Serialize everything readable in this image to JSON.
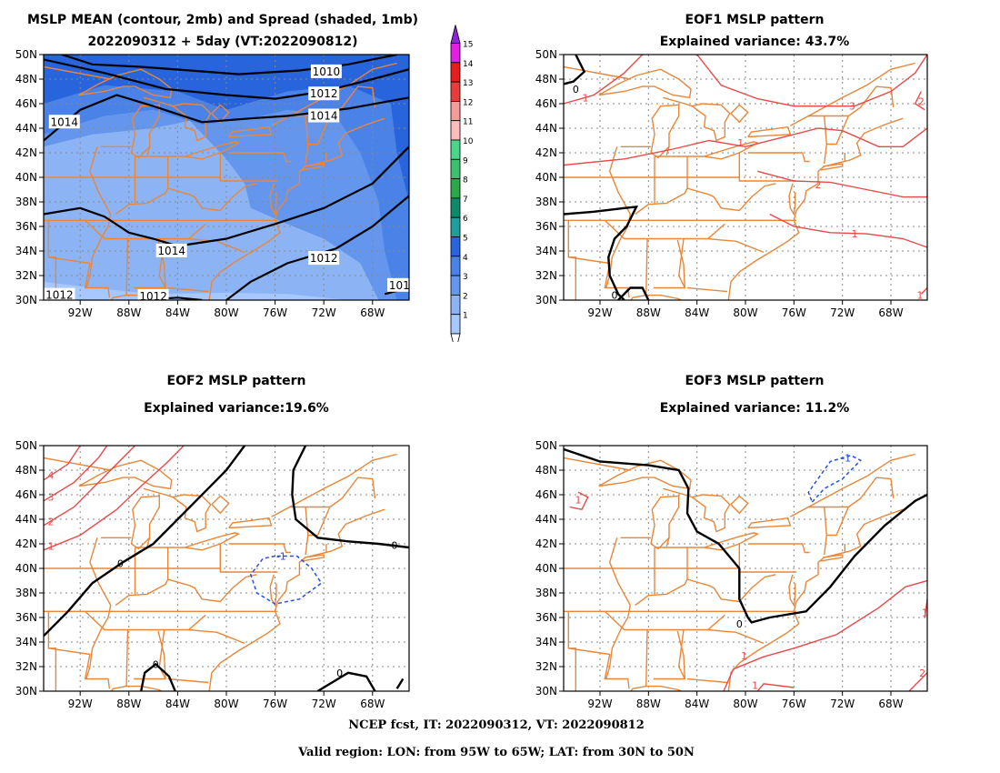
{
  "panels": [
    {
      "id": "mean-spread",
      "title_lines": [
        "MSLP MEAN (contour, 2mb) and Spread (shaded, 1mb)",
        "2022090312 + 5day (VT:2022090812)"
      ]
    },
    {
      "id": "eof1",
      "title_lines": [
        "EOF1 MSLP pattern",
        "Explained variance: 43.7%"
      ],
      "contour_labels": [
        "0",
        "1",
        "1",
        "2",
        "3",
        "2",
        "1",
        "1",
        "0"
      ]
    },
    {
      "id": "eof2",
      "title_lines": [
        "EOF2 MSLP pattern",
        "Explained variance:19.6%"
      ],
      "contour_labels": [
        "0",
        "0",
        "0",
        "0",
        "-1",
        "1",
        "2",
        "3",
        "4"
      ]
    },
    {
      "id": "eof3",
      "title_lines": [
        "EOF3 MSLP pattern",
        "Explained variance: 11.2%"
      ],
      "contour_labels": [
        "0",
        "-1",
        "1",
        "1",
        "1",
        "2",
        "1"
      ]
    }
  ],
  "mean_contour_labels": [
    "1010",
    "1012",
    "1014",
    "1014",
    "1014",
    "1012",
    "1012",
    "1012",
    "101"
  ],
  "axes": {
    "lon_ticks": [
      "92W",
      "88W",
      "84W",
      "80W",
      "76W",
      "72W",
      "68W"
    ],
    "lat_ticks": [
      "50N",
      "48N",
      "46N",
      "44N",
      "42N",
      "40N",
      "38N",
      "36N",
      "34N",
      "32N",
      "30N"
    ]
  },
  "colorbar": {
    "levels": [
      "1",
      "2",
      "3",
      "4",
      "5",
      "6",
      "7",
      "8",
      "9",
      "10",
      "11",
      "12",
      "13",
      "14",
      "15"
    ],
    "colors": [
      "#a6c8ff",
      "#8cb4f5",
      "#6496ee",
      "#4a82e8",
      "#2864dc",
      "#1e9e9e",
      "#0e8a6a",
      "#2aa84a",
      "#3cc070",
      "#4ad68a",
      "#ffbcbc",
      "#f79a9a",
      "#e83c3c",
      "#e81e1e",
      "#e41ee4"
    ],
    "top_color": "#8e24d8"
  },
  "colors": {
    "land_outline": "#e8873a",
    "mean_contour": "#000000",
    "positive_contour": "#e84a4a",
    "negative_contour": "#2850e0",
    "zero_contour": "#000000",
    "grid": "#888888"
  },
  "footer": {
    "line1": "NCEP fcst, IT: 2022090312, VT: 2022090812",
    "line2": "Valid region: LON: from 95W to 65W; LAT: from 30N to 50N"
  }
}
